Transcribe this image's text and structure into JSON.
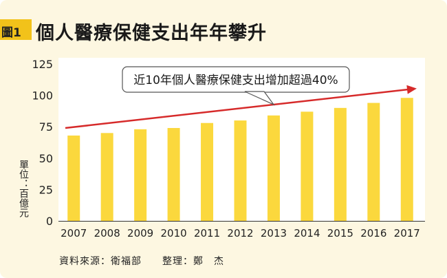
{
  "figure_tag": "圖1",
  "title": "個人醫療保健支出年年攀升",
  "unit_label": "單位：百億元",
  "callout": "近10年個人醫療保健支出增加超過40%",
  "source": "資料來源：衛福部",
  "editor": "整理：鄭　杰",
  "colors": {
    "bar": "#fbd83d",
    "arrow": "#d62a2a",
    "plot_bg": "#ffffff",
    "card_bg": "#fdf7e1",
    "tag": "#f2c21a"
  },
  "chart_data": {
    "type": "bar",
    "categories": [
      "2007",
      "2008",
      "2009",
      "2010",
      "2011",
      "2012",
      "2013",
      "2014",
      "2015",
      "2016",
      "2017"
    ],
    "values": [
      68,
      70,
      73,
      74,
      78,
      80,
      84,
      87,
      90,
      94,
      98
    ],
    "yticks": [
      0,
      25,
      50,
      75,
      100,
      125
    ],
    "ylim": [
      0,
      125
    ],
    "ylabel": "單位：百億元",
    "xlabel": "",
    "grid": false,
    "trend_arrow": {
      "from": 74,
      "to": 105
    }
  }
}
